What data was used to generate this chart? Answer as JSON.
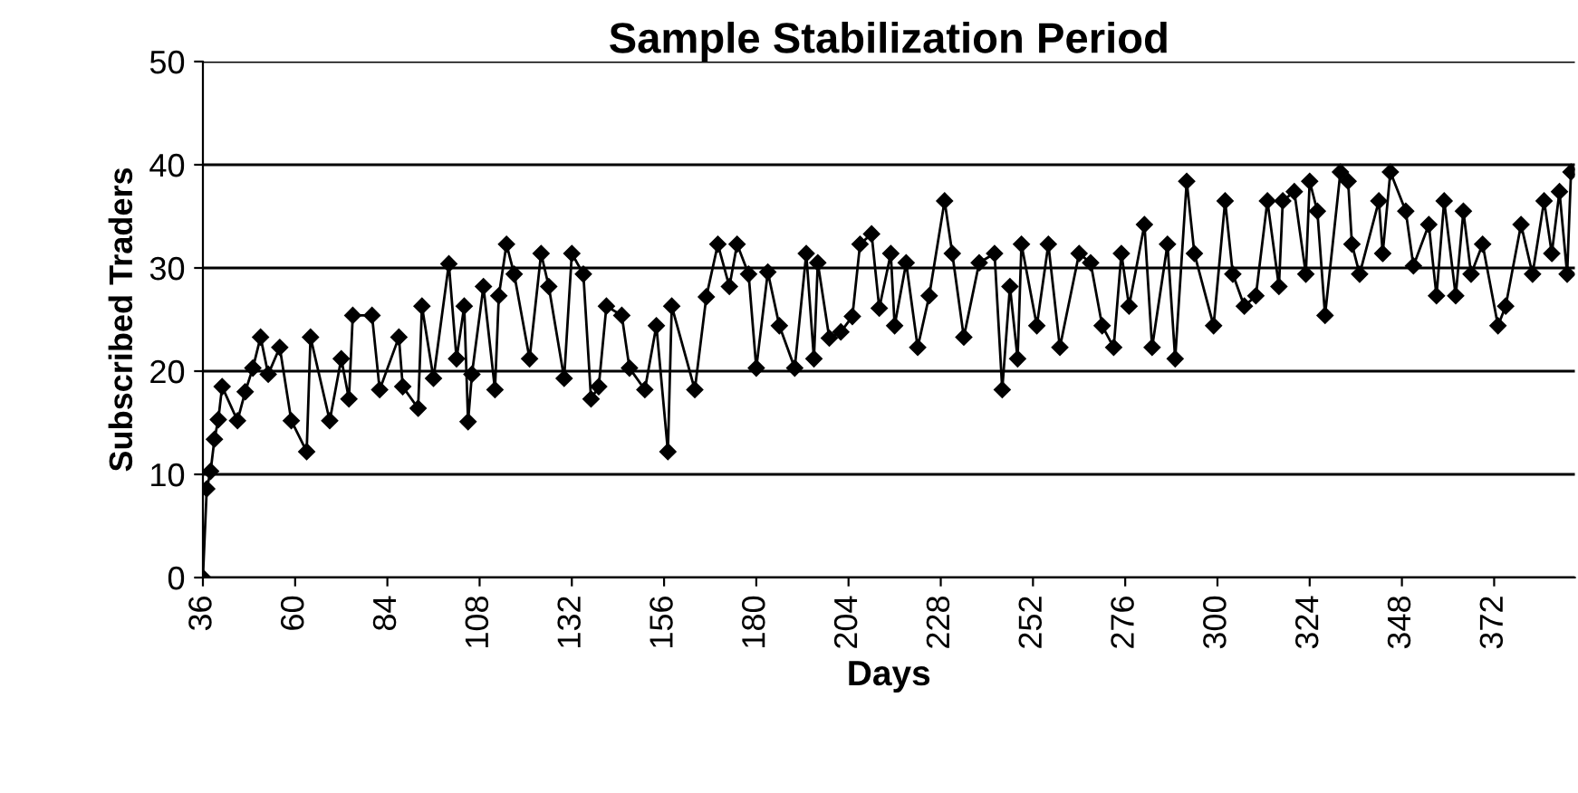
{
  "chart_data": {
    "type": "line",
    "title": "Sample Stabilization Period",
    "xlabel": "Days",
    "ylabel": "Subscribed Traders",
    "x": [
      36,
      37,
      38,
      39,
      40,
      41,
      45,
      47,
      49,
      51,
      53,
      56,
      59,
      63,
      64,
      69,
      72,
      74,
      75,
      80,
      82,
      87,
      88,
      92,
      93,
      96,
      100,
      102,
      104,
      105,
      106,
      109,
      112,
      113,
      115,
      117,
      121,
      124,
      126,
      130,
      132,
      135,
      137,
      139,
      141,
      145,
      147,
      151,
      154,
      157,
      158,
      164,
      167,
      170,
      173,
      175,
      178,
      180,
      183,
      186,
      190,
      193,
      195,
      196,
      199,
      202,
      205,
      207,
      210,
      212,
      215,
      216,
      219,
      222,
      225,
      229,
      231,
      234,
      238,
      242,
      244,
      246,
      248,
      249,
      253,
      256,
      259,
      264,
      267,
      270,
      273,
      275,
      277,
      281,
      283,
      287,
      289,
      292,
      294,
      299,
      302,
      304,
      307,
      310,
      313,
      316,
      317,
      320,
      323,
      324,
      326,
      328,
      332,
      334,
      335,
      337,
      342,
      343,
      345,
      349,
      351,
      355,
      357,
      359,
      362,
      364,
      366,
      369,
      373,
      375,
      379,
      382,
      385,
      387,
      389,
      391,
      392
    ],
    "series": [
      {
        "color": "#000000",
        "values": [
          0,
          8.6,
          10.3,
          13.4,
          15.3,
          18.5,
          15.2,
          18,
          20.3,
          23.3,
          19.7,
          22.3,
          15.2,
          12.2,
          23.3,
          15.2,
          21.2,
          17.3,
          25.4,
          25.4,
          18.2,
          23.3,
          18.5,
          16.4,
          26.3,
          19.3,
          30.4,
          21.2,
          26.3,
          15.1,
          19.7,
          28.2,
          18.2,
          27.3,
          32.3,
          29.4,
          21.2,
          31.4,
          28.2,
          19.3,
          31.4,
          29.4,
          17.3,
          18.5,
          26.3,
          25.4,
          20.3,
          18.2,
          24.4,
          12.2,
          26.3,
          18.2,
          27.2,
          32.3,
          28.2,
          32.3,
          29.4,
          20.3,
          29.6,
          24.4,
          20.3,
          31.4,
          21.2,
          30.5,
          23.2,
          23.8,
          25.3,
          32.3,
          33.3,
          26.1,
          31.4,
          24.4,
          30.5,
          22.3,
          27.3,
          36.5,
          31.4,
          23.3,
          30.5,
          31.4,
          18.2,
          28.2,
          21.2,
          32.3,
          24.4,
          32.3,
          22.3,
          31.4,
          30.5,
          24.4,
          22.3,
          31.4,
          26.3,
          34.2,
          22.3,
          32.3,
          21.2,
          38.4,
          31.4,
          24.4,
          36.5,
          29.4,
          26.3,
          27.3,
          36.5,
          28.2,
          36.5,
          37.4,
          29.4,
          38.4,
          35.5,
          25.4,
          39.3,
          38.4,
          32.3,
          29.4,
          36.5,
          31.4,
          39.3,
          35.5,
          30.2,
          34.2,
          27.3,
          36.5,
          27.3,
          35.5,
          29.4,
          32.3,
          24.4,
          26.3,
          34.2,
          29.4,
          36.5,
          31.4,
          37.4,
          29.4,
          39.3
        ]
      }
    ],
    "xlim": [
      36,
      393
    ],
    "xticks": [
      36,
      60,
      84,
      108,
      132,
      156,
      180,
      204,
      228,
      252,
      276,
      300,
      324,
      348,
      372
    ],
    "ylim": [
      0,
      50
    ],
    "yticks": [
      0,
      10,
      20,
      30,
      40,
      50
    ],
    "grid": "y",
    "marker": "diamond",
    "line_style": "solid",
    "legend": false
  }
}
